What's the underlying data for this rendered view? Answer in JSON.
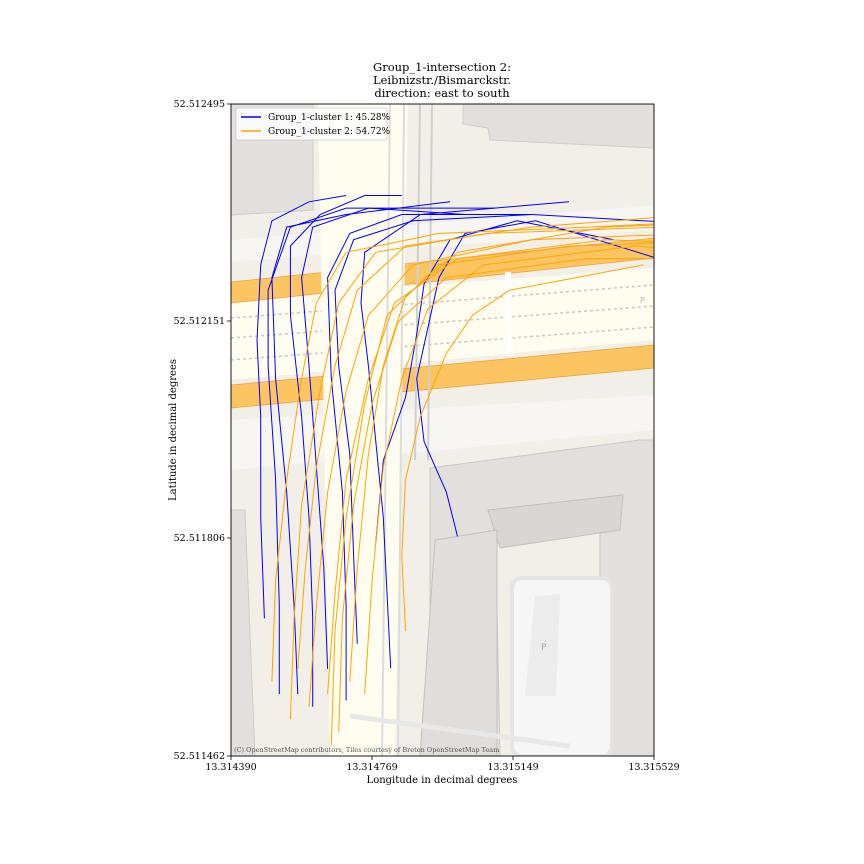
{
  "chart_data": {
    "type": "line",
    "title": [
      "Group_1-intersection 2:",
      "Leibnizstr./Bismarckstr.",
      "direction: east to south"
    ],
    "xlabel": "Longitude in decimal degrees",
    "ylabel": "Latitude in decimal degrees",
    "xlim": [
      13.31439,
      13.315529
    ],
    "ylim": [
      52.511462,
      52.512495
    ],
    "x_ticks": [
      "13.314390",
      "13.314769",
      "13.315149",
      "13.315529"
    ],
    "y_ticks": [
      "52.512495",
      "52.512151",
      "52.511806",
      "52.511462"
    ],
    "grid": false,
    "legend_position": "top-left",
    "attribution": "(C) OpenStreetMap contributors, Tiles courtesy of Breton OpenStreetMap Team",
    "basemap": "OpenStreetMap Breton tiles",
    "series": [
      {
        "name": "Group_1-cluster 1: 45.28%",
        "color": "#0000ff",
        "tracks": [
          [
            [
              13.31482,
              52.511601
            ],
            [
              13.31481,
              52.51172
            ],
            [
              13.3148,
              52.51184
            ],
            [
              13.31478,
              52.51196
            ],
            [
              13.31476,
              52.51208
            ],
            [
              13.31474,
              52.51218
            ],
            [
              13.31475,
              52.51226
            ],
            [
              13.3149,
              52.51232
            ],
            [
              13.3153,
              52.51234
            ]
          ],
          [
            [
              13.31457,
              52.51156
            ],
            [
              13.31456,
              52.5117
            ],
            [
              13.31454,
              52.51188
            ],
            [
              13.31451,
              52.51206
            ],
            [
              13.3145,
              52.51222
            ],
            [
              13.31454,
              52.5123
            ],
            [
              13.3147,
              52.51232
            ],
            [
              13.31498,
              52.51234
            ]
          ],
          [
            [
              13.31452,
              52.51156
            ],
            [
              13.31452,
              52.5117
            ],
            [
              13.31451,
              52.5119
            ],
            [
              13.31449,
              52.51208
            ],
            [
              13.31449,
              52.5122
            ],
            [
              13.31455,
              52.5123
            ],
            [
              13.3147,
              52.51233
            ],
            [
              13.3151,
              52.51233
            ]
          ],
          [
            [
              13.31473,
              52.51164
            ],
            [
              13.31472,
              52.51178
            ],
            [
              13.31471,
              52.51194
            ],
            [
              13.31468,
              52.51208
            ],
            [
              13.31467,
              52.5122
            ],
            [
              13.31472,
              52.51228
            ],
            [
              13.31488,
              52.51231
            ],
            [
              13.3152,
              52.51232
            ]
          ],
          [
            [
              13.31465,
              52.5116
            ],
            [
              13.31464,
              52.51176
            ],
            [
              13.31462,
              52.51192
            ],
            [
              13.3146,
              52.51208
            ],
            [
              13.31458,
              52.51222
            ],
            [
              13.31461,
              52.5123
            ],
            [
              13.31476,
              52.51233
            ],
            [
              13.31502,
              52.51232
            ]
          ],
          [
            [
              13.31478,
              52.5118
            ],
            [
              13.3148,
              52.51193
            ],
            [
              13.31486,
              52.51203
            ],
            [
              13.31489,
              52.51213
            ],
            [
              13.31491,
              52.51221
            ],
            [
              13.31498,
              52.51228
            ],
            [
              13.31516,
              52.51231
            ],
            [
              13.31542,
              52.51228
            ]
          ],
          [
            [
              13.315,
              52.51181
            ],
            [
              13.31497,
              52.51188
            ],
            [
              13.31491,
              52.51196
            ],
            [
              13.31489,
              52.51206
            ],
            [
              13.31492,
              52.51214
            ],
            [
              13.31495,
              52.51222
            ],
            [
              13.31502,
              52.51229
            ],
            [
              13.31521,
              52.51231
            ],
            [
              13.31554,
              52.51225
            ]
          ],
          [
            [
              13.31461,
              52.51154
            ],
            [
              13.31461,
              52.51168
            ],
            [
              13.3146,
              52.51184
            ],
            [
              13.31458,
              52.512
            ],
            [
              13.31455,
              52.51216
            ],
            [
              13.31455,
              52.51227
            ],
            [
              13.31463,
              52.51232
            ],
            [
              13.31475,
              52.51235
            ],
            [
              13.31485,
              52.51235
            ]
          ],
          [
            [
              13.31448,
              52.51168
            ],
            [
              13.31447,
              52.51184
            ],
            [
              13.31447,
              52.512
            ],
            [
              13.31446,
              52.51212
            ],
            [
              13.31447,
              52.51224
            ],
            [
              13.3145,
              52.51231
            ],
            [
              13.3146,
              52.51234
            ],
            [
              13.3147,
              52.51235
            ]
          ],
          [
            [
              13.3147,
              52.51155
            ],
            [
              13.3147,
              52.5117
            ],
            [
              13.31469,
              52.51188
            ],
            [
              13.31466,
              52.51206
            ],
            [
              13.31465,
              52.51222
            ],
            [
              13.31471,
              52.51229
            ],
            [
              13.31485,
              52.51232
            ],
            [
              13.3152,
              52.51232
            ],
            [
              13.3158,
              52.5123
            ]
          ]
        ]
      },
      {
        "name": "Group_1-cluster 2: 54.72%",
        "color": "#ffa500",
        "tracks": [
          [
            [
              13.3145,
              52.51158
            ],
            [
              13.31451,
              52.51174
            ],
            [
              13.31454,
              52.5119
            ],
            [
              13.31458,
              52.51206
            ],
            [
              13.31462,
              52.51218
            ],
            [
              13.3147,
              52.51226
            ],
            [
              13.31495,
              52.51229
            ],
            [
              13.31535,
              52.5123
            ],
            [
              13.3157,
              52.51231
            ]
          ],
          [
            [
              13.31455,
              52.51152
            ],
            [
              13.31456,
              52.51168
            ],
            [
              13.31458,
              52.51186
            ],
            [
              13.31463,
              52.51204
            ],
            [
              13.31468,
              52.51218
            ],
            [
              13.31478,
              52.51226
            ],
            [
              13.31508,
              52.51229
            ],
            [
              13.31555,
              52.5123
            ],
            [
              13.3159,
              52.51231
            ]
          ],
          [
            [
              13.3146,
              52.51154
            ],
            [
              13.31462,
              52.5117
            ],
            [
              13.31465,
              52.51188
            ],
            [
              13.3147,
              52.51204
            ],
            [
              13.31476,
              52.51216
            ],
            [
              13.31488,
              52.51224
            ],
            [
              13.3152,
              52.51228
            ],
            [
              13.31564,
              52.51229
            ]
          ],
          [
            [
              13.31465,
              52.51156
            ],
            [
              13.31467,
              52.51172
            ],
            [
              13.3147,
              52.5119
            ],
            [
              13.31476,
              52.51206
            ],
            [
              13.31483,
              52.51218
            ],
            [
              13.315,
              52.51225
            ],
            [
              13.3154,
              52.51228
            ],
            [
              13.31583,
              52.51227
            ]
          ],
          [
            [
              13.31468,
              52.5115
            ],
            [
              13.31469,
              52.51168
            ],
            [
              13.31472,
              52.51186
            ],
            [
              13.31477,
              52.51202
            ],
            [
              13.31484,
              52.51215
            ],
            [
              13.31497,
              52.51222
            ],
            [
              13.31535,
              52.51225
            ],
            [
              13.31574,
              52.51225
            ]
          ],
          [
            [
              13.31475,
              52.51156
            ],
            [
              13.31477,
              52.51174
            ],
            [
              13.3148,
              52.51192
            ],
            [
              13.31485,
              52.51206
            ],
            [
              13.31492,
              52.51217
            ],
            [
              13.31507,
              52.51224
            ],
            [
              13.31548,
              52.51227
            ],
            [
              13.3159,
              52.51225
            ]
          ],
          [
            [
              13.31486,
              52.51166
            ],
            [
              13.31485,
              52.51178
            ],
            [
              13.31486,
              52.5119
            ],
            [
              13.3149,
              52.512
            ],
            [
              13.31497,
              52.5121
            ],
            [
              13.31504,
              52.51216
            ],
            [
              13.31514,
              52.5122
            ],
            [
              13.3155,
              52.51224
            ]
          ],
          [
            [
              13.31471,
              52.51158
            ],
            [
              13.31473,
              52.51176
            ],
            [
              13.31476,
              52.51194
            ],
            [
              13.3148,
              52.51208
            ],
            [
              13.31486,
              52.51219
            ],
            [
              13.315,
              52.51226
            ],
            [
              13.3154,
              52.5123
            ],
            [
              13.3158,
              52.51231
            ]
          ],
          [
            [
              13.31457,
              52.5116
            ],
            [
              13.31459,
              52.51176
            ],
            [
              13.31462,
              52.51192
            ],
            [
              13.31467,
              52.51208
            ],
            [
              13.31473,
              52.5122
            ],
            [
              13.31486,
              52.51227
            ],
            [
              13.3152,
              52.5123
            ],
            [
              13.31564,
              52.51232
            ]
          ],
          [
            [
              13.31466,
              52.51148
            ],
            [
              13.31467,
              52.51166
            ],
            [
              13.3147,
              52.51184
            ],
            [
              13.31475,
              52.51202
            ],
            [
              13.31481,
              52.51216
            ],
            [
              13.31495,
              52.51224
            ],
            [
              13.3153,
              52.51227
            ],
            [
              13.3158,
              52.51228
            ]
          ]
        ]
      }
    ]
  }
}
